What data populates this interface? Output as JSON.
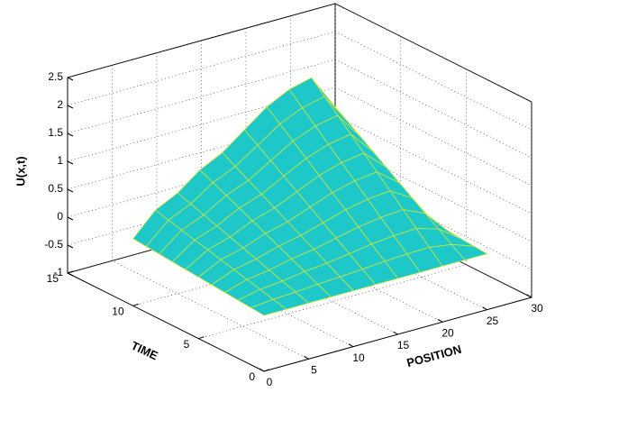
{
  "chart_data": {
    "type": "surface",
    "x_label": "POSITION",
    "y_label": "TIME",
    "z_label": "U(x,t)",
    "x": [
      0,
      2.5,
      5,
      7.5,
      10,
      12.5,
      15,
      17.5,
      20,
      22.5,
      25
    ],
    "y": [
      0,
      1,
      2,
      3,
      4,
      5,
      6,
      7,
      8,
      9,
      10
    ],
    "z": [
      [
        0,
        0,
        0,
        0,
        0,
        0,
        0,
        0,
        0,
        0,
        0
      ],
      [
        0.02,
        0.06,
        0.08,
        0.11,
        0.13,
        0.16,
        0.19,
        0.21,
        0.22,
        0.16,
        0.02
      ],
      [
        0.04,
        0.12,
        0.16,
        0.22,
        0.26,
        0.32,
        0.38,
        0.42,
        0.44,
        0.32,
        0.04
      ],
      [
        0.06,
        0.18,
        0.24,
        0.33,
        0.39,
        0.48,
        0.57,
        0.63,
        0.66,
        0.48,
        0.06
      ],
      [
        0.08,
        0.24,
        0.32,
        0.44,
        0.52,
        0.64,
        0.76,
        0.84,
        0.88,
        0.64,
        0.08
      ],
      [
        0.1,
        0.3,
        0.4,
        0.55,
        0.65,
        0.8,
        0.95,
        1.05,
        1.1,
        0.8,
        0.1
      ],
      [
        0.12,
        0.36,
        0.48,
        0.66,
        0.78,
        0.96,
        1.14,
        1.26,
        1.32,
        0.96,
        0.12
      ],
      [
        0.14,
        0.42,
        0.56,
        0.77,
        0.91,
        1.12,
        1.33,
        1.47,
        1.54,
        1.12,
        0.14
      ],
      [
        0.16,
        0.48,
        0.64,
        0.88,
        1.04,
        1.28,
        1.52,
        1.68,
        1.76,
        1.28,
        0.16
      ],
      [
        0.18,
        0.54,
        0.72,
        0.99,
        1.17,
        1.44,
        1.71,
        1.89,
        1.98,
        1.44,
        0.18
      ],
      [
        0.2,
        0.6,
        0.8,
        1.1,
        1.3,
        1.6,
        1.9,
        2.1,
        2.2,
        1.6,
        0.2
      ]
    ],
    "color": "#1fc8c8",
    "edge_color": "#c8e63c",
    "xlim": [
      0,
      30
    ],
    "xticks": [
      0,
      5,
      10,
      15,
      20,
      25,
      30
    ],
    "ylim": [
      0,
      15
    ],
    "yticks": [
      0,
      5,
      10,
      15
    ],
    "zlim": [
      -1,
      2.5
    ],
    "zticks": [
      -1,
      -0.5,
      0,
      0.5,
      1,
      1.5,
      2,
      2.5
    ],
    "grid": true
  }
}
